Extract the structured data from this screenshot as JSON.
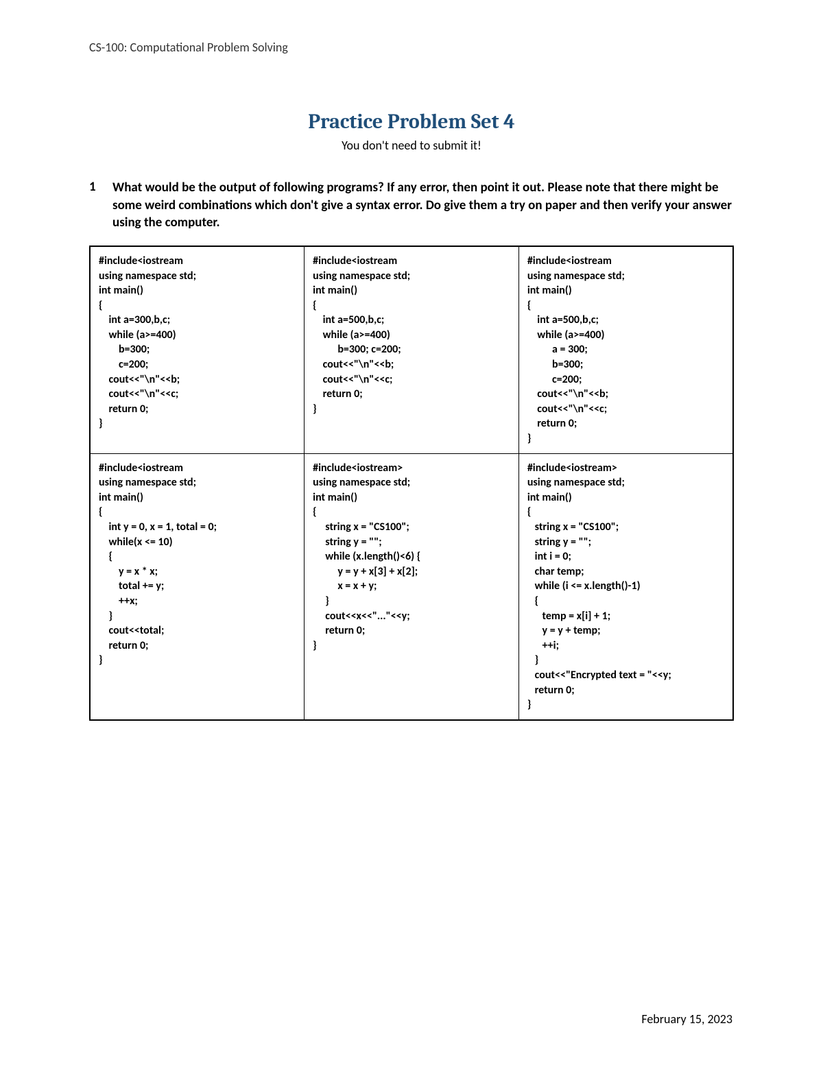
{
  "header": {
    "course": "CS-100: Computational Problem Solving"
  },
  "title": "Practice Problem Set 4",
  "subtitle": "You don't need to submit it!",
  "question": {
    "number": "1",
    "text": "What would be the output of following programs? If any error, then point it out. Please note that there might be some weird combinations which don't give a syntax error. Do give them a try on paper and then verify your answer using the computer."
  },
  "code_cells": {
    "r1c1": "#include<iostream\nusing namespace std;\nint main()\n{\n    int a=300,b,c;\n    while (a>=400)\n        b=300;\n        c=200;\n    cout<<\"\\n\"<<b;\n    cout<<\"\\n\"<<c;\n    return 0;\n}",
    "r1c2": "#include<iostream\nusing namespace std;\nint main()\n{\n    int a=500,b,c;\n    while (a>=400)\n          b=300; c=200;\n    cout<<\"\\n\"<<b;\n    cout<<\"\\n\"<<c;\n    return 0;\n}",
    "r1c3": "#include<iostream\nusing namespace std;\nint main()\n{\n    int a=500,b,c;\n    while (a>=400)\n          a = 300;\n          b=300;\n          c=200;\n    cout<<\"\\n\"<<b;\n    cout<<\"\\n\"<<c;\n    return 0;\n}",
    "r2c1": "#include<iostream\nusing namespace std;\nint main()\n{\n    int y = 0, x = 1, total = 0;\n    while(x <= 10)\n    {\n        y = x * x;\n        total += y;\n        ++x;\n    }\n    cout<<total;\n    return 0;\n}",
    "r2c2": "#include<iostream>\nusing namespace std;\nint main()\n{\n     string x = \"CS100\";\n     string y = \"\";\n     while (x.length()<6) {\n          y = y + x[3] + x[2];\n          x = x + y;\n     }\n     cout<<x<<\"...\"<<y;\n     return 0;\n}",
    "r2c3": "#include<iostream>\nusing namespace std;\nint main()\n{\n   string x = \"CS100\";\n   string y = \"\";\n   int i = 0;\n   char temp;\n   while (i <= x.length()-1)\n   {\n      temp = x[i] + 1;\n      y = y + temp;\n      ++i;\n   }\n   cout<<\"Encrypted text = \"<<y;\n   return 0;\n}"
  },
  "footer": {
    "date": "February 15, 2023"
  },
  "colors": {
    "title": "#1f4e79",
    "text": "#000000",
    "header_text": "#333333",
    "background": "#ffffff",
    "border": "#000000"
  }
}
